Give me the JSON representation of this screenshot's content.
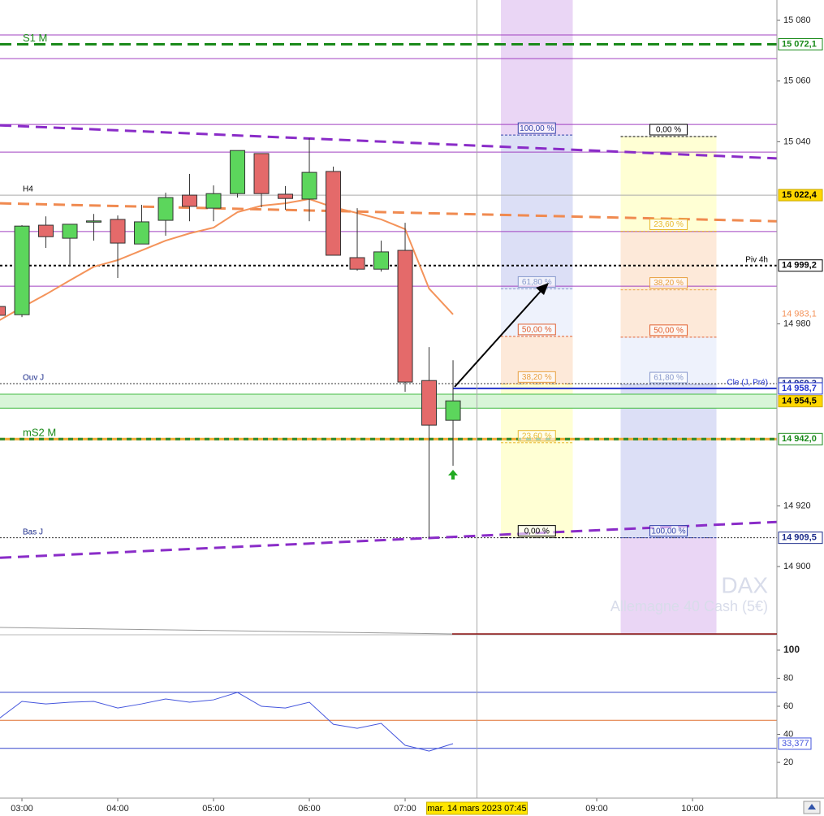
{
  "chart_data": {
    "type": "candlestick",
    "instrument": "DAX",
    "instrument_name": "Allemagne 40 Cash (5€)",
    "x": [
      2.75,
      3,
      3.25,
      3.5,
      3.75,
      4,
      4.25,
      4.5,
      4.75,
      5,
      5.25,
      5.5,
      5.75,
      6,
      6.25,
      6.5,
      6.75,
      7,
      7.25,
      7.5
    ],
    "open": [
      14985.7,
      14983.0,
      15012.5,
      15008.2,
      15013.6,
      15014.4,
      15006.3,
      15014.1,
      15022.4,
      15018.1,
      15022.9,
      15036.1,
      15022.7,
      15021.1,
      15030.2,
      15001.8,
      14998.0,
      15004.2,
      14961.3,
      14948.2
    ],
    "high": [
      14987.0,
      15012.5,
      15015.4,
      15012.8,
      15016.2,
      15015.7,
      15019.2,
      15023.2,
      15029.4,
      15025.6,
      15037.1,
      15036.1,
      15025.4,
      15041.2,
      15031.8,
      15018.1,
      15007.4,
      15013.3,
      14972.3,
      14968.0
    ],
    "low": [
      14982.0,
      14982.2,
      15005.0,
      14998.8,
      15007.4,
      14995.1,
      15006.3,
      15009.0,
      15013.8,
      15013.8,
      15021.6,
      15018.4,
      15017.6,
      15013.8,
      15002.6,
      14997.5,
      14997.2,
      14957.6,
      14909.4,
      14933.2
    ],
    "close": [
      14982.8,
      15012.2,
      15008.7,
      15012.8,
      15013.9,
      15006.6,
      15013.6,
      15021.6,
      15018.7,
      15022.9,
      15037.1,
      15022.9,
      15021.3,
      15029.9,
      15002.6,
      14998.0,
      15003.7,
      14960.8,
      14946.6,
      14954.6
    ],
    "up_color": "#5cd65c",
    "down_color": "#e46a6a",
    "xlim": [
      2.771,
      10.881
    ],
    "xticks": [
      {
        "value": 3,
        "label": "03:00"
      },
      {
        "value": 4,
        "label": "04:00"
      },
      {
        "value": 5,
        "label": "05:00"
      },
      {
        "value": 6,
        "label": "06:00"
      },
      {
        "value": 7,
        "label": "07:00"
      },
      {
        "value": 9,
        "label": "09:00"
      },
      {
        "value": 10,
        "label": "10:00"
      }
    ],
    "ylim": [
      14877.8,
      15086.7
    ],
    "yticks": [
      {
        "value": 15080,
        "label": "15 080"
      },
      {
        "value": 15060,
        "label": "15 060"
      },
      {
        "value": 15040,
        "label": "15 040"
      },
      {
        "value": 14980,
        "label": "14 980"
      },
      {
        "value": 14920,
        "label": "14 920"
      },
      {
        "value": 14900,
        "label": "14 900"
      }
    ],
    "moving_average": {
      "color": "#f4935a",
      "values": [
        14980.9,
        14985.4,
        14989.7,
        14994.3,
        14998.8,
        15001.0,
        15004.2,
        15007.4,
        15009.8,
        15011.7,
        15016.8,
        15018.9,
        15019.7,
        15021.1,
        15018.4,
        15016.5,
        15014.4,
        15011.2,
        14991.6,
        14983.1
      ],
      "last_label": "14 983,1"
    },
    "purple_lines": {
      "color": "#a040c0",
      "values": [
        15075.2,
        15067.4,
        15045.7,
        15036.6,
        15010.4,
        14992.4
      ]
    },
    "trendlines": [
      {
        "color": "#8a2cc8",
        "x": [
          2.771,
          10.881
        ],
        "y": [
          15045.4,
          15034.5
        ]
      },
      {
        "color": "#8a2cc8",
        "x": [
          2.771,
          10.881
        ],
        "y": [
          14902.9,
          14914.7
        ]
      },
      {
        "color": "#f08a50",
        "x": [
          2.771,
          10.881
        ],
        "y": [
          15019.7,
          15013.8
        ]
      }
    ],
    "levels": [
      {
        "name": "S1 M",
        "value": 15072.1,
        "label": "15 072,1",
        "color": "#1a8a1a",
        "dash": "14 7",
        "width": 3,
        "name_side": "left",
        "label_bg": "#ffffff",
        "label_color": "#1a8a1a"
      },
      {
        "name": "H4",
        "value": 15022.4,
        "label": "15 022,4",
        "color": "#aaaaaa",
        "dash": "none",
        "width": 1,
        "name_side": "left",
        "label_bg": "#ffd700",
        "label_color": "#000000"
      },
      {
        "name": "Piv 4h",
        "value": 14999.2,
        "label": "14 999,2",
        "color": "#000000",
        "dash": "3 3",
        "width": 2,
        "name_side": "right",
        "label_bg": "#ffffff",
        "label_color": "#000000"
      },
      {
        "name": "Ouv J",
        "value": 14960.3,
        "label": "14 960,3",
        "color": "#333333",
        "dash": "2 2",
        "width": 1,
        "name_side": "left",
        "label_bg": "#ffffff",
        "label_color": "#1a2a8a"
      },
      {
        "name": "Cle (J, Pré)",
        "value": 14958.7,
        "label": "14 958,7",
        "color": "#2233cc",
        "dash": "none",
        "width": 2,
        "name_side": "right",
        "label_bg": "#ffffff",
        "label_color": "#2233cc",
        "start": 7.5
      },
      {
        "value": 14954.5,
        "label": "14 954,5",
        "color": "#44bb44",
        "dash": "none",
        "width": 1,
        "band": [
          14952.2,
          14956.8
        ],
        "band_color": "#d8f5d8",
        "label_bg": "#ffd700",
        "label_color": "#000000"
      },
      {
        "name": "mS2 M",
        "value": 14942.0,
        "label": "14 942,0",
        "color": "#f0a830",
        "dash_color": "#2a8a2a",
        "dash": "6 6",
        "width": 3,
        "name_side": "left",
        "label_bg": "#ffffff",
        "label_color": "#1a8a1a"
      },
      {
        "name": "Bas J",
        "value": 14909.5,
        "label": "14 909,5",
        "color": "#333333",
        "dash": "2 2",
        "width": 1,
        "name_side": "left",
        "label_bg": "#ffffff",
        "label_color": "#1a2a8a"
      }
    ],
    "fibonacci": [
      {
        "x": [
          8.0,
          8.75
        ],
        "from": 14909.5,
        "to": 15042.2,
        "extension_color": "#ead6f5",
        "bands": [
          "#ffffd4",
          "#ffffd4",
          "#fde9d9",
          "#eef2fc",
          "#dcdff6"
        ],
        "levels": [
          {
            "ratio": 0,
            "label": "0,00 %",
            "color": "#000000"
          },
          {
            "ratio": 23.6,
            "label": "23,60 %",
            "color": "#e8b830"
          },
          {
            "ratio": 38.2,
            "label": "38,20 %",
            "color": "#e8a040"
          },
          {
            "ratio": 50,
            "label": "50,00 %",
            "color": "#e06030"
          },
          {
            "ratio": 61.8,
            "label": "61,80 %",
            "color": "#8899cc"
          },
          {
            "ratio": 100,
            "label": "100,00 %",
            "color": "#3344aa"
          }
        ]
      },
      {
        "x": [
          9.25,
          10.25
        ],
        "from": 15041.7,
        "to": 14909.5,
        "extension_color": "#ead6f5",
        "bands": [
          "#ffffd4",
          "#fde9d9",
          "#fde9d9",
          "#eef2fc",
          "#dcdff6"
        ],
        "levels": [
          {
            "ratio": 0,
            "label": "0,00 %",
            "color": "#000000"
          },
          {
            "ratio": 23.6,
            "label": "23,60 %",
            "color": "#e8b830"
          },
          {
            "ratio": 38.2,
            "label": "38,20 %",
            "color": "#e8a040"
          },
          {
            "ratio": 50,
            "label": "50,00 %",
            "color": "#e06030"
          },
          {
            "ratio": 61.8,
            "label": "61,80 %",
            "color": "#8899cc"
          },
          {
            "ratio": 100,
            "label": "100,00 %",
            "color": "#3344aa"
          }
        ]
      }
    ],
    "crosshair": {
      "x": 7.75,
      "label": "mar. 14 mars 2023 07:45"
    },
    "indicator": {
      "color": "#4455dd",
      "values": [
        50.7,
        63.5,
        61.7,
        62.9,
        63.5,
        58.8,
        61.7,
        65.2,
        62.9,
        64.6,
        69.9,
        60.0,
        58.8,
        62.9,
        47.2,
        44.3,
        47.8,
        32.2,
        28.1,
        33.377
      ],
      "last_label": "33,377",
      "ylim": [
        -4.3,
        110.4
      ],
      "yticks": [
        20,
        40,
        60,
        80,
        100
      ],
      "levels": [
        {
          "value": 70,
          "color": "#3344cc"
        },
        {
          "value": 50,
          "color": "#e07030"
        },
        {
          "value": 30,
          "color": "#3344cc"
        }
      ]
    }
  }
}
